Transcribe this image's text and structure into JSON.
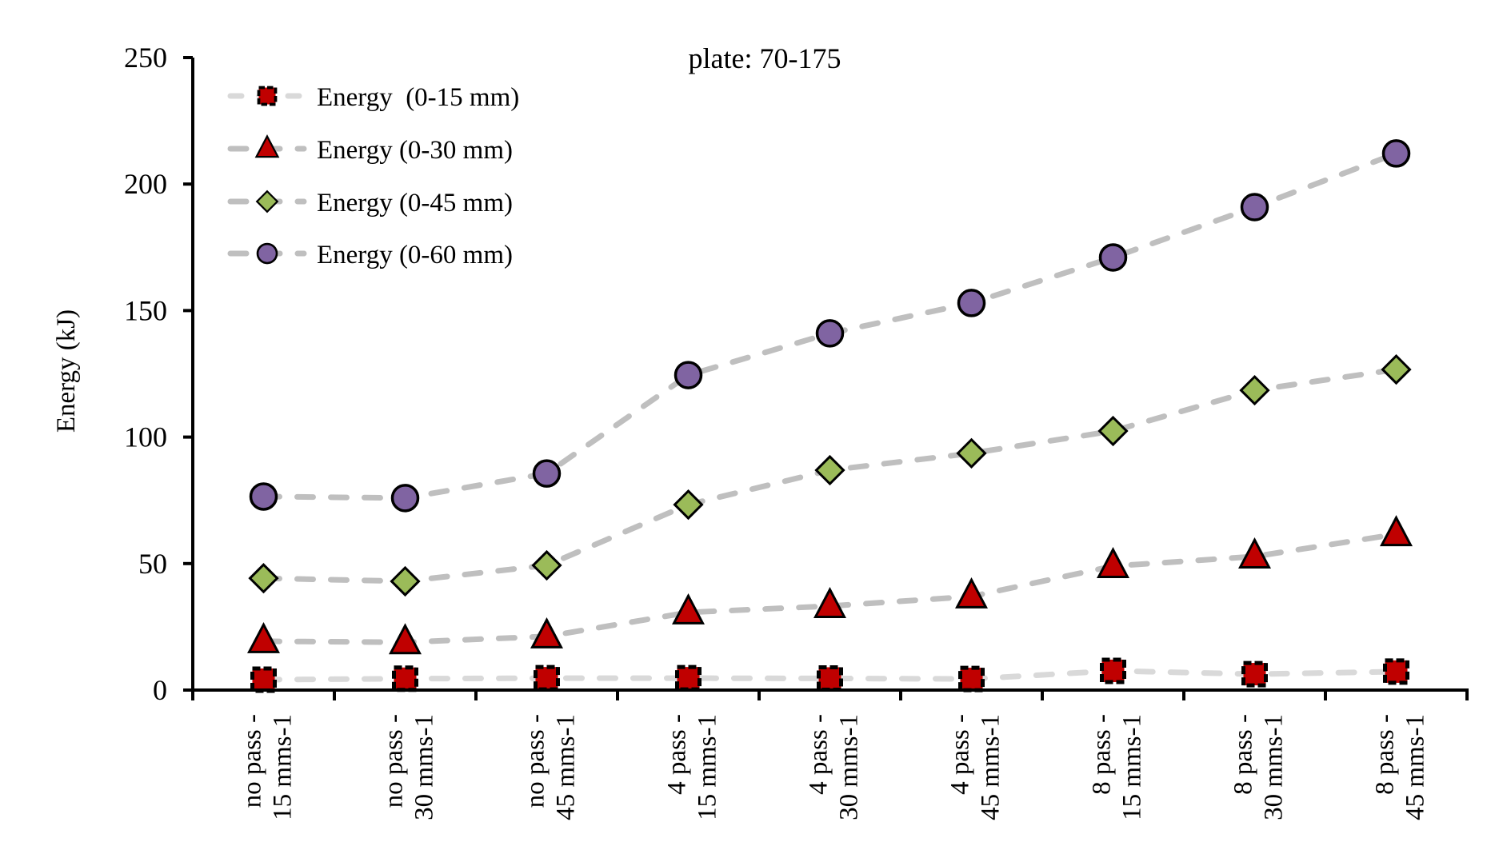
{
  "chart_data": {
    "type": "line",
    "title": "plate: 70-175",
    "xlabel": "",
    "ylabel": "Energy (kJ)",
    "ylim": [
      0,
      250
    ],
    "yticks": [
      0,
      50,
      100,
      150,
      200,
      250
    ],
    "grid": false,
    "legend_position": "top-left",
    "categories": [
      [
        "no pass -",
        "15 mms-1"
      ],
      [
        "no pass -",
        "30 mms-1"
      ],
      [
        "no pass -",
        "45 mms-1"
      ],
      [
        "4 pass -",
        "15 mms-1"
      ],
      [
        "4 pass -",
        "30 mms-1"
      ],
      [
        "4 pass -",
        "45 mms-1"
      ],
      [
        "8 pass -",
        "15 mms-1"
      ],
      [
        "8 pass -",
        "30 mms-1"
      ],
      [
        "8 pass -",
        "45 mms-1"
      ]
    ],
    "series": [
      {
        "name": "Energy  (0-15 mm)",
        "marker": "square",
        "marker_color": "#c00000",
        "line_color": "#d9d9d9",
        "line_style": "dashed",
        "values": [
          4.1,
          4.5,
          4.7,
          4.7,
          4.6,
          4.4,
          7.6,
          6.3,
          7.3
        ]
      },
      {
        "name": "Energy (0-30 mm)",
        "marker": "triangle",
        "marker_color": "#c00000",
        "line_color": "#bfbfbf",
        "line_style": "dashed",
        "values": [
          19.3,
          18.9,
          21.2,
          30.7,
          33.2,
          37.0,
          49.0,
          52.8,
          61.6
        ]
      },
      {
        "name": "Energy (0-45 mm)",
        "marker": "diamond",
        "marker_color": "#9bbb59",
        "line_color": "#bfbfbf",
        "line_style": "dashed",
        "values": [
          44.2,
          43.0,
          49.3,
          73.3,
          86.9,
          93.6,
          102.4,
          118.5,
          126.7
        ]
      },
      {
        "name": "Energy (0-60 mm)",
        "marker": "circle",
        "marker_color": "#8064a2",
        "line_color": "#bfbfbf",
        "line_style": "dashed",
        "values": [
          76.5,
          75.9,
          85.6,
          124.5,
          141.0,
          153.0,
          171.0,
          190.9,
          212.1
        ]
      }
    ]
  }
}
